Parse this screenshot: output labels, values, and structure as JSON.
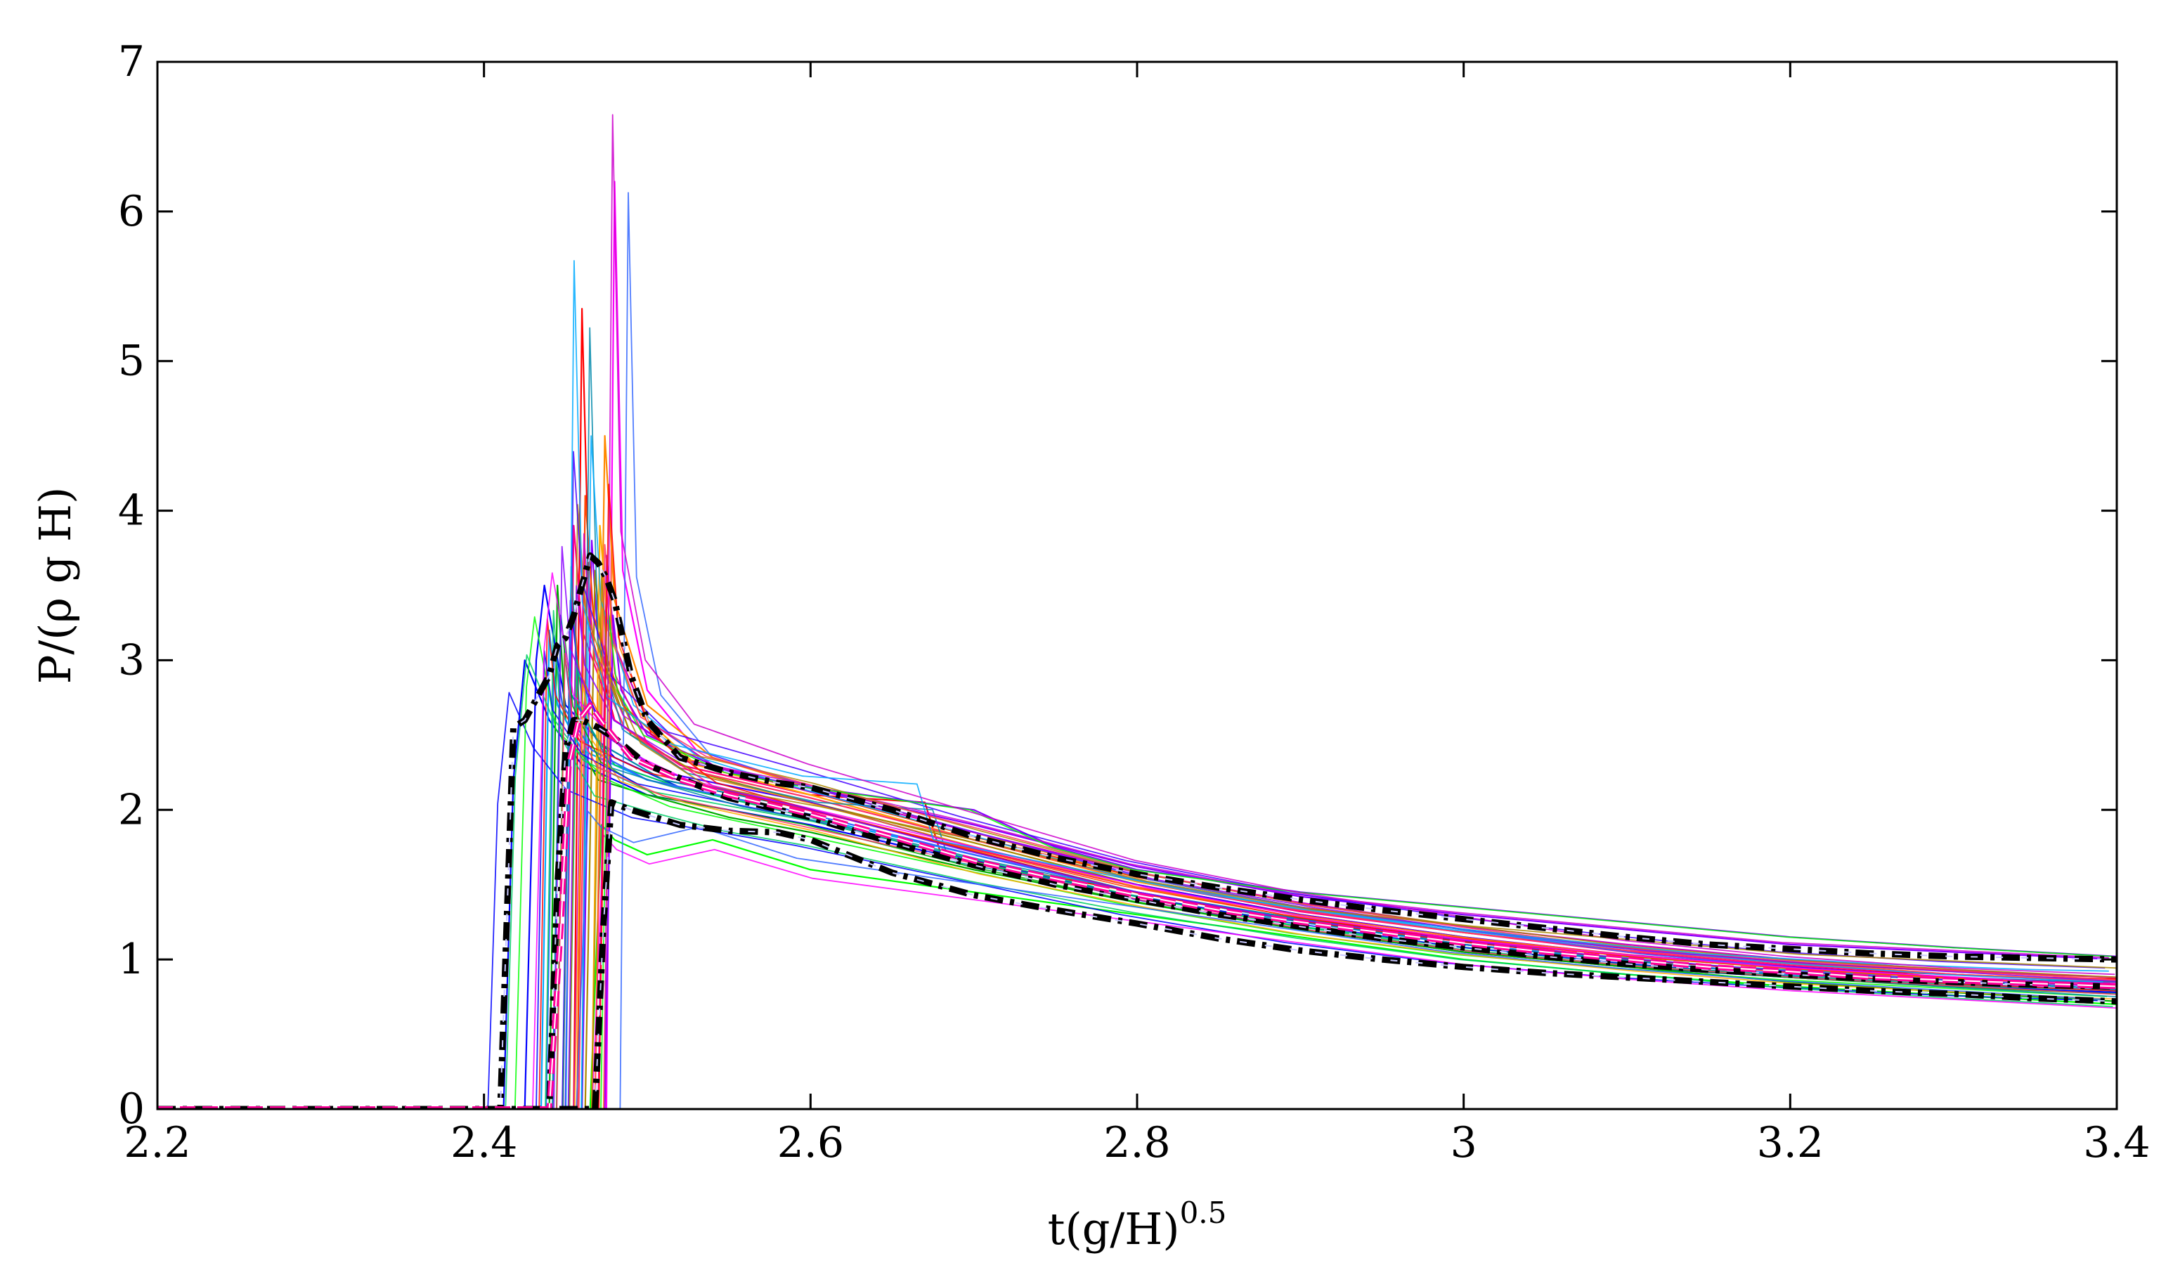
{
  "chart_data": {
    "type": "line",
    "title": "",
    "xlabel_main": "t(g/H)",
    "xlabel_sup": "0.5",
    "ylabel": "P/(ρ g H)",
    "xlim": [
      2.2,
      3.4
    ],
    "ylim": [
      0,
      7
    ],
    "x_ticks": [
      "2.2",
      "2.4",
      "2.6",
      "2.8",
      "3",
      "3.2",
      "3.4"
    ],
    "y_ticks": [
      "0",
      "1",
      "2",
      "3",
      "4",
      "5",
      "6",
      "7"
    ],
    "grid": false,
    "legend": "none",
    "ensemble_colors": [
      "#0000ff",
      "#00aa00",
      "#ff0000",
      "#ff00ff",
      "#ff8800",
      "#8800ff",
      "#00aaff",
      "#00ff00",
      "#ff0088",
      "#aa8800",
      "#0088aa",
      "#ff4400",
      "#4400ff",
      "#cc00cc",
      "#00cc66",
      "#ffaa00",
      "#ff3366",
      "#3366ff"
    ],
    "series": [
      {
        "role": "ensemble",
        "color": "#0000ff",
        "x": [
          2.2,
          2.412,
          2.418,
          2.425,
          2.44,
          2.46,
          2.5,
          2.55,
          2.6,
          2.7,
          2.8,
          2.9,
          3.0,
          3.1,
          3.2,
          3.3,
          3.4
        ],
        "y": [
          0,
          0,
          2.2,
          3.0,
          2.6,
          2.3,
          2.1,
          2.0,
          1.9,
          1.65,
          1.4,
          1.2,
          1.05,
          0.95,
          0.88,
          0.82,
          0.78
        ]
      },
      {
        "role": "ensemble",
        "color": "#0000ff",
        "x": [
          2.2,
          2.425,
          2.432,
          2.437,
          2.45,
          2.48,
          2.52,
          2.6,
          2.7,
          2.8,
          2.9,
          3.0,
          3.1,
          3.2,
          3.3,
          3.4
        ],
        "y": [
          0,
          0,
          3.0,
          3.5,
          2.7,
          2.35,
          2.15,
          1.95,
          1.7,
          1.45,
          1.25,
          1.1,
          1.0,
          0.92,
          0.86,
          0.8
        ]
      },
      {
        "role": "ensemble",
        "color": "#00aa00",
        "x": [
          2.2,
          2.44,
          2.445,
          2.45,
          2.47,
          2.5,
          2.55,
          2.6,
          2.7,
          2.8,
          2.9,
          3.0,
          3.1,
          3.2,
          3.3,
          3.4
        ],
        "y": [
          0,
          0,
          3.5,
          2.6,
          2.2,
          2.1,
          1.95,
          1.85,
          1.6,
          1.38,
          1.2,
          1.05,
          0.95,
          0.85,
          0.78,
          0.72
        ]
      },
      {
        "role": "ensemble",
        "color": "#00ff00",
        "x": [
          2.2,
          2.465,
          2.472,
          2.48,
          2.5,
          2.54,
          2.6,
          2.7,
          2.8,
          2.9,
          3.0,
          3.1,
          3.2,
          3.3,
          3.4
        ],
        "y": [
          0,
          0,
          1.9,
          1.8,
          1.7,
          1.8,
          1.6,
          1.45,
          1.3,
          1.15,
          1.0,
          0.9,
          0.82,
          0.76,
          0.7
        ]
      },
      {
        "role": "ensemble",
        "color": "#ff0000",
        "x": [
          2.2,
          2.455,
          2.46,
          2.465,
          2.48,
          2.52,
          2.6,
          2.67,
          2.68,
          2.75,
          2.85,
          2.95,
          3.05,
          3.15,
          3.25,
          3.35,
          3.4
        ],
        "y": [
          0,
          0,
          5.35,
          3.2,
          2.6,
          2.3,
          2.1,
          2.05,
          1.7,
          1.55,
          1.35,
          1.2,
          1.08,
          0.98,
          0.92,
          0.88,
          0.87
        ]
      },
      {
        "role": "ensemble",
        "color": "#ff00ff",
        "x": [
          2.2,
          2.475,
          2.48,
          2.485,
          2.5,
          2.53,
          2.6,
          2.7,
          2.8,
          2.9,
          3.0,
          3.1,
          3.2,
          3.3,
          3.4
        ],
        "y": [
          0,
          0,
          6.2,
          3.6,
          2.8,
          2.4,
          2.15,
          1.85,
          1.55,
          1.35,
          1.2,
          1.05,
          0.95,
          0.88,
          0.84
        ]
      },
      {
        "role": "ensemble",
        "color": "#ff8800",
        "x": [
          2.2,
          2.468,
          2.474,
          2.48,
          2.5,
          2.54,
          2.6,
          2.7,
          2.8,
          2.9,
          3.0,
          3.1,
          3.2,
          3.3,
          3.4
        ],
        "y": [
          0,
          0,
          4.5,
          3.4,
          2.7,
          2.35,
          2.15,
          1.85,
          1.55,
          1.35,
          1.2,
          1.08,
          0.98,
          0.9,
          0.85
        ]
      },
      {
        "role": "ensemble",
        "color": "#8800ff",
        "x": [
          2.2,
          2.46,
          2.466,
          2.47,
          2.49,
          2.53,
          2.6,
          2.7,
          2.8,
          2.9,
          3.0,
          3.1,
          3.2,
          3.3,
          3.4
        ],
        "y": [
          0,
          0,
          3.8,
          3.1,
          2.6,
          2.3,
          2.15,
          1.9,
          1.62,
          1.42,
          1.3,
          1.2,
          1.1,
          1.05,
          1.0
        ]
      },
      {
        "role": "ensemble",
        "color": "#00aaff",
        "x": [
          2.2,
          2.435,
          2.44,
          2.445,
          2.46,
          2.5,
          2.6,
          2.7,
          2.8,
          2.9,
          3.0,
          3.1,
          3.2,
          3.3,
          3.4
        ],
        "y": [
          0,
          0,
          3.2,
          2.7,
          2.4,
          2.2,
          1.95,
          1.7,
          1.45,
          1.25,
          1.1,
          1.0,
          0.92,
          0.86,
          0.8
        ]
      },
      {
        "role": "ensemble",
        "color": "#ff0088",
        "x": [
          2.2,
          2.45,
          2.455,
          2.46,
          2.48,
          2.52,
          2.6,
          2.7,
          2.8,
          2.9,
          3.0,
          3.1,
          3.2,
          3.3,
          3.4
        ],
        "y": [
          0,
          0,
          3.9,
          3.2,
          2.6,
          2.3,
          2.1,
          1.8,
          1.52,
          1.32,
          1.18,
          1.05,
          0.96,
          0.9,
          0.85
        ]
      },
      {
        "role": "ensemble",
        "color": "#aa8800",
        "x": [
          2.2,
          2.462,
          2.468,
          2.473,
          2.49,
          2.53,
          2.6,
          2.7,
          2.8,
          2.9,
          3.0,
          3.1,
          3.2,
          3.3,
          3.4
        ],
        "y": [
          0,
          0,
          3.6,
          3.0,
          2.5,
          2.25,
          2.05,
          1.78,
          1.5,
          1.3,
          1.15,
          1.02,
          0.94,
          0.88,
          0.82
        ]
      },
      {
        "role": "ensemble",
        "color": "#0088aa",
        "x": [
          2.2,
          2.442,
          2.447,
          2.452,
          2.47,
          2.51,
          2.6,
          2.7,
          2.8,
          2.9,
          3.0,
          3.1,
          3.2,
          3.3,
          3.4
        ],
        "y": [
          0,
          0,
          3.3,
          2.8,
          2.45,
          2.2,
          2.0,
          1.72,
          1.45,
          1.27,
          1.12,
          1.0,
          0.92,
          0.86,
          0.8
        ]
      },
      {
        "role": "ensemble",
        "color": "#ff4400",
        "x": [
          2.2,
          2.457,
          2.462,
          2.467,
          2.485,
          2.52,
          2.6,
          2.7,
          2.8,
          2.9,
          3.0,
          3.1,
          3.2,
          3.3,
          3.4
        ],
        "y": [
          0,
          0,
          4.1,
          3.3,
          2.7,
          2.35,
          2.12,
          1.82,
          1.55,
          1.35,
          1.2,
          1.08,
          0.98,
          0.92,
          0.88
        ]
      },
      {
        "role": "ensemble",
        "color": "#4400ff",
        "x": [
          2.2,
          2.448,
          2.453,
          2.458,
          2.475,
          2.51,
          2.6,
          2.7,
          2.8,
          2.9,
          3.0,
          3.1,
          3.2,
          3.3,
          3.4
        ],
        "y": [
          0,
          0,
          3.4,
          2.9,
          2.5,
          2.25,
          2.05,
          1.75,
          1.5,
          1.3,
          1.15,
          1.03,
          0.95,
          0.88,
          0.83
        ]
      },
      {
        "role": "ensemble",
        "color": "#cc00cc",
        "x": [
          2.2,
          2.47,
          2.475,
          2.48,
          2.5,
          2.54,
          2.6,
          2.7,
          2.8,
          2.9,
          3.0,
          3.1,
          3.2,
          3.3,
          3.4
        ],
        "y": [
          0,
          0,
          3.7,
          3.1,
          2.6,
          2.3,
          2.12,
          1.85,
          1.58,
          1.38,
          1.22,
          1.1,
          1.0,
          0.93,
          0.88
        ]
      },
      {
        "role": "ensemble",
        "color": "#00cc66",
        "x": [
          2.2,
          2.452,
          2.457,
          2.462,
          2.48,
          2.52,
          2.6,
          2.7,
          2.8,
          2.9,
          3.0,
          3.1,
          3.2,
          3.3,
          3.4
        ],
        "y": [
          0,
          0,
          3.0,
          2.6,
          2.3,
          2.15,
          1.95,
          1.65,
          1.42,
          1.22,
          1.08,
          0.97,
          0.88,
          0.82,
          0.77
        ]
      },
      {
        "role": "ensemble",
        "color": "#ffaa00",
        "x": [
          2.2,
          2.466,
          2.471,
          2.476,
          2.495,
          2.53,
          2.6,
          2.7,
          2.8,
          2.9,
          3.0,
          3.1,
          3.2,
          3.3,
          3.4
        ],
        "y": [
          0,
          0,
          3.9,
          3.2,
          2.65,
          2.3,
          2.1,
          1.8,
          1.52,
          1.33,
          1.18,
          1.06,
          0.97,
          0.9,
          0.86
        ]
      },
      {
        "role": "ensemble",
        "color": "#ff3366",
        "x": [
          2.2,
          2.458,
          2.463,
          2.468,
          2.486,
          2.52,
          2.6,
          2.7,
          2.8,
          2.9,
          3.0,
          3.1,
          3.2,
          3.3,
          3.4
        ],
        "y": [
          0,
          0,
          3.6,
          3.0,
          2.55,
          2.28,
          2.08,
          1.8,
          1.53,
          1.33,
          1.18,
          1.06,
          0.97,
          0.9,
          0.85
        ]
      },
      {
        "role": "ensemble",
        "color": "#3366ff",
        "x": [
          2.2,
          2.438,
          2.443,
          2.448,
          2.466,
          2.5,
          2.6,
          2.7,
          2.8,
          2.9,
          3.0,
          3.1,
          3.2,
          3.3,
          3.4
        ],
        "y": [
          0,
          0,
          3.1,
          2.7,
          2.4,
          2.2,
          1.97,
          1.7,
          1.45,
          1.26,
          1.1,
          0.99,
          0.9,
          0.84,
          0.79
        ]
      },
      {
        "role": "ensemble",
        "color": "#8800ff",
        "x": [
          2.2,
          2.474,
          2.479,
          2.484,
          2.5,
          2.55,
          2.6,
          2.7,
          2.75,
          2.8,
          2.9,
          3.0,
          3.1,
          3.2,
          3.3,
          3.4
        ],
        "y": [
          0,
          0,
          3.3,
          2.8,
          2.5,
          2.25,
          2.15,
          2.0,
          1.75,
          1.6,
          1.45,
          1.35,
          1.25,
          1.15,
          1.08,
          1.02
        ]
      },
      {
        "role": "envelope",
        "color": "#000000",
        "x": [
          2.2,
          2.41,
          2.418,
          2.425,
          2.43,
          2.44,
          2.445,
          2.45,
          2.455,
          2.46,
          2.465,
          2.47,
          2.475,
          2.48,
          2.49,
          2.5,
          2.52,
          2.55,
          2.58,
          2.6,
          2.65,
          2.7,
          2.75,
          2.8,
          2.85,
          2.9,
          2.95,
          3.0,
          3.05,
          3.1,
          3.15,
          3.2,
          3.25,
          3.3,
          3.35,
          3.4
        ],
        "y": [
          0,
          0,
          2.55,
          2.6,
          2.7,
          2.9,
          3.1,
          3.15,
          3.3,
          3.5,
          3.7,
          3.65,
          3.55,
          3.4,
          2.9,
          2.6,
          2.35,
          2.25,
          2.18,
          2.15,
          2.0,
          1.82,
          1.68,
          1.57,
          1.48,
          1.4,
          1.33,
          1.27,
          1.21,
          1.15,
          1.1,
          1.07,
          1.04,
          1.02,
          1.01,
          1.0
        ]
      },
      {
        "role": "envelope",
        "color": "#000000",
        "x": [
          2.2,
          2.44,
          2.445,
          2.45,
          2.455,
          2.46,
          2.47,
          2.48,
          2.5,
          2.55,
          2.6,
          2.65,
          2.7,
          2.75,
          2.8,
          2.85,
          2.9,
          2.95,
          3.0,
          3.05,
          3.1,
          3.15,
          3.2,
          3.25,
          3.3,
          3.35,
          3.4
        ],
        "y": [
          0,
          0,
          1.5,
          2.4,
          2.6,
          2.6,
          2.55,
          2.48,
          2.3,
          2.08,
          1.95,
          1.78,
          1.63,
          1.5,
          1.4,
          1.3,
          1.22,
          1.14,
          1.08,
          1.02,
          0.97,
          0.93,
          0.9,
          0.87,
          0.85,
          0.83,
          0.82
        ]
      },
      {
        "role": "envelope",
        "color": "#000000",
        "x": [
          2.2,
          2.468,
          2.473,
          2.478,
          2.49,
          2.52,
          2.55,
          2.58,
          2.6,
          2.65,
          2.7,
          2.75,
          2.8,
          2.85,
          2.9,
          2.95,
          3.0,
          3.05,
          3.1,
          3.15,
          3.2,
          3.25,
          3.3,
          3.35,
          3.4
        ],
        "y": [
          0,
          0,
          1.2,
          2.05,
          2.0,
          1.9,
          1.86,
          1.85,
          1.8,
          1.58,
          1.43,
          1.33,
          1.24,
          1.14,
          1.06,
          1.0,
          0.95,
          0.91,
          0.88,
          0.85,
          0.82,
          0.79,
          0.77,
          0.74,
          0.72
        ]
      },
      {
        "role": "mean",
        "color": "#ff0099",
        "x": [
          2.2,
          2.44,
          2.447,
          2.452,
          2.458,
          2.465,
          2.475,
          2.49,
          2.52,
          2.55,
          2.6,
          2.65,
          2.7,
          2.75,
          2.8,
          2.85,
          2.9,
          2.95,
          3.0,
          3.05,
          3.1,
          3.15,
          3.2,
          3.25,
          3.3,
          3.35,
          3.4
        ],
        "y": [
          0,
          0,
          1.2,
          2.3,
          2.6,
          2.7,
          2.55,
          2.35,
          2.2,
          2.1,
          1.97,
          1.82,
          1.66,
          1.54,
          1.43,
          1.33,
          1.25,
          1.18,
          1.11,
          1.05,
          1.0,
          0.95,
          0.92,
          0.88,
          0.86,
          0.84,
          0.82
        ]
      }
    ]
  }
}
